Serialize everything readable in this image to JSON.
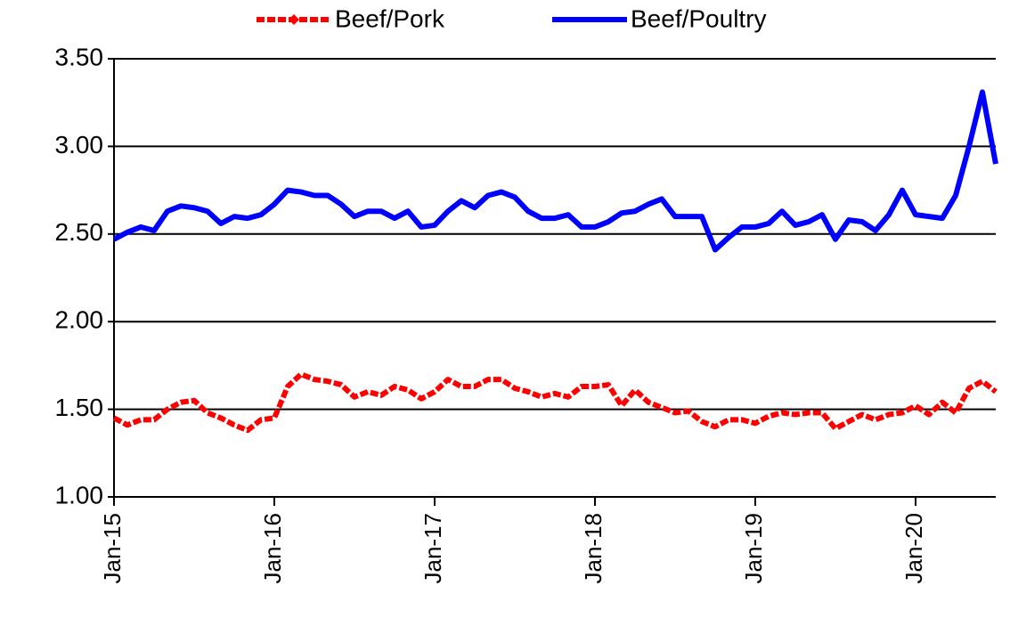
{
  "chart_data": {
    "type": "line",
    "categories": [
      "Jan-15",
      null,
      null,
      null,
      null,
      null,
      null,
      null,
      null,
      null,
      null,
      null,
      "Jan-16",
      null,
      null,
      null,
      null,
      null,
      null,
      null,
      null,
      null,
      null,
      null,
      "Jan-17",
      null,
      null,
      null,
      null,
      null,
      null,
      null,
      null,
      null,
      null,
      null,
      "Jan-18",
      null,
      null,
      null,
      null,
      null,
      null,
      null,
      null,
      null,
      null,
      null,
      "Jan-19",
      null,
      null,
      null,
      null,
      null,
      null,
      null,
      null,
      null,
      null,
      null,
      "Jan-20",
      null,
      null,
      null,
      null,
      null,
      null
    ],
    "series": [
      {
        "name": "Beef/Pork",
        "color": "#ff0000",
        "values": [
          1.45,
          1.41,
          1.44,
          1.44,
          1.5,
          1.54,
          1.55,
          1.48,
          1.45,
          1.41,
          1.38,
          1.44,
          1.45,
          1.63,
          1.7,
          1.67,
          1.66,
          1.64,
          1.57,
          1.6,
          1.58,
          1.63,
          1.61,
          1.56,
          1.6,
          1.67,
          1.63,
          1.63,
          1.67,
          1.67,
          1.62,
          1.6,
          1.57,
          1.59,
          1.57,
          1.63,
          1.63,
          1.64,
          1.52,
          1.61,
          1.54,
          1.51,
          1.48,
          1.49,
          1.43,
          1.4,
          1.44,
          1.44,
          1.42,
          1.46,
          1.48,
          1.47,
          1.48,
          1.48,
          1.39,
          1.43,
          1.47,
          1.44,
          1.47,
          1.48,
          1.52,
          1.47,
          1.54,
          1.48,
          1.62,
          1.66,
          1.6
        ]
      },
      {
        "name": "Beef/Poultry",
        "color": "#0000ff",
        "values": [
          2.47,
          2.51,
          2.54,
          2.52,
          2.63,
          2.66,
          2.65,
          2.63,
          2.56,
          2.6,
          2.59,
          2.61,
          2.67,
          2.75,
          2.74,
          2.72,
          2.72,
          2.67,
          2.6,
          2.63,
          2.63,
          2.59,
          2.63,
          2.54,
          2.55,
          2.63,
          2.69,
          2.65,
          2.72,
          2.74,
          2.71,
          2.63,
          2.59,
          2.59,
          2.61,
          2.54,
          2.54,
          2.57,
          2.62,
          2.63,
          2.67,
          2.7,
          2.6,
          2.6,
          2.6,
          2.41,
          2.48,
          2.54,
          2.54,
          2.56,
          2.63,
          2.55,
          2.57,
          2.61,
          2.47,
          2.58,
          2.57,
          2.52,
          2.61,
          2.75,
          2.61,
          2.6,
          2.59,
          2.72,
          3.0,
          3.31,
          2.9
        ]
      }
    ],
    "ylim": [
      1,
      3.5
    ],
    "yticks": [
      {
        "value": 1,
        "label": "1.00"
      },
      {
        "value": 1.5,
        "label": "1.50"
      },
      {
        "value": 2,
        "label": "2.00"
      },
      {
        "value": 2.5,
        "label": "2.50"
      },
      {
        "value": 3,
        "label": "3.00"
      },
      {
        "value": 3.5,
        "label": "3.50"
      }
    ],
    "grid": true,
    "legend": "top"
  }
}
